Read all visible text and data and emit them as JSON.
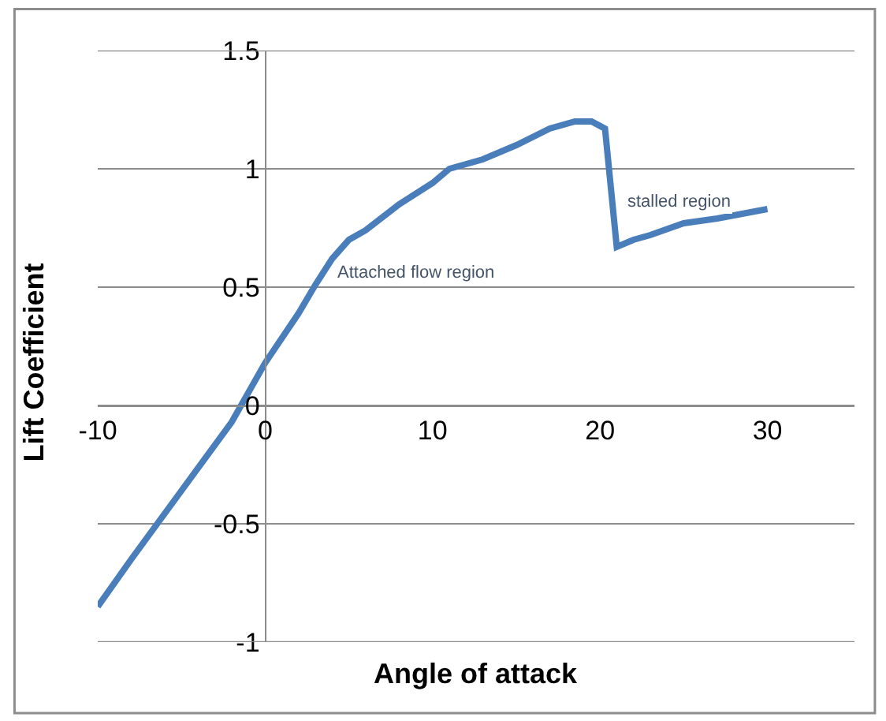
{
  "chart_data": {
    "type": "line",
    "xlabel": "Angle of attack",
    "ylabel": "Lift Coefficient",
    "x": [
      -10,
      -8,
      -5,
      -2,
      0,
      2,
      3,
      4,
      5,
      6,
      8,
      10,
      11,
      13,
      15,
      17,
      18.5,
      19.5,
      20.3,
      21,
      22,
      23,
      25,
      27,
      30
    ],
    "series": [
      {
        "color": "#4a7ebb",
        "values": [
          -0.85,
          -0.65,
          -0.36,
          -0.07,
          0.18,
          0.39,
          0.51,
          0.62,
          0.7,
          0.74,
          0.85,
          0.94,
          1.0,
          1.04,
          1.1,
          1.17,
          1.2,
          1.2,
          1.17,
          0.67,
          0.7,
          0.72,
          0.77,
          0.79,
          0.83
        ]
      }
    ],
    "xlim": [
      -10,
      35.2
    ],
    "xticks": [
      -10,
      0,
      10,
      20,
      30
    ],
    "ylim": [
      -1,
      1.5
    ],
    "yticks": [
      -1,
      -0.5,
      0,
      0.5,
      1,
      1.5
    ],
    "grid": "y",
    "marker": "none",
    "line_style": "solid",
    "annotations": [
      "Attached flow region",
      "stalled region"
    ]
  }
}
